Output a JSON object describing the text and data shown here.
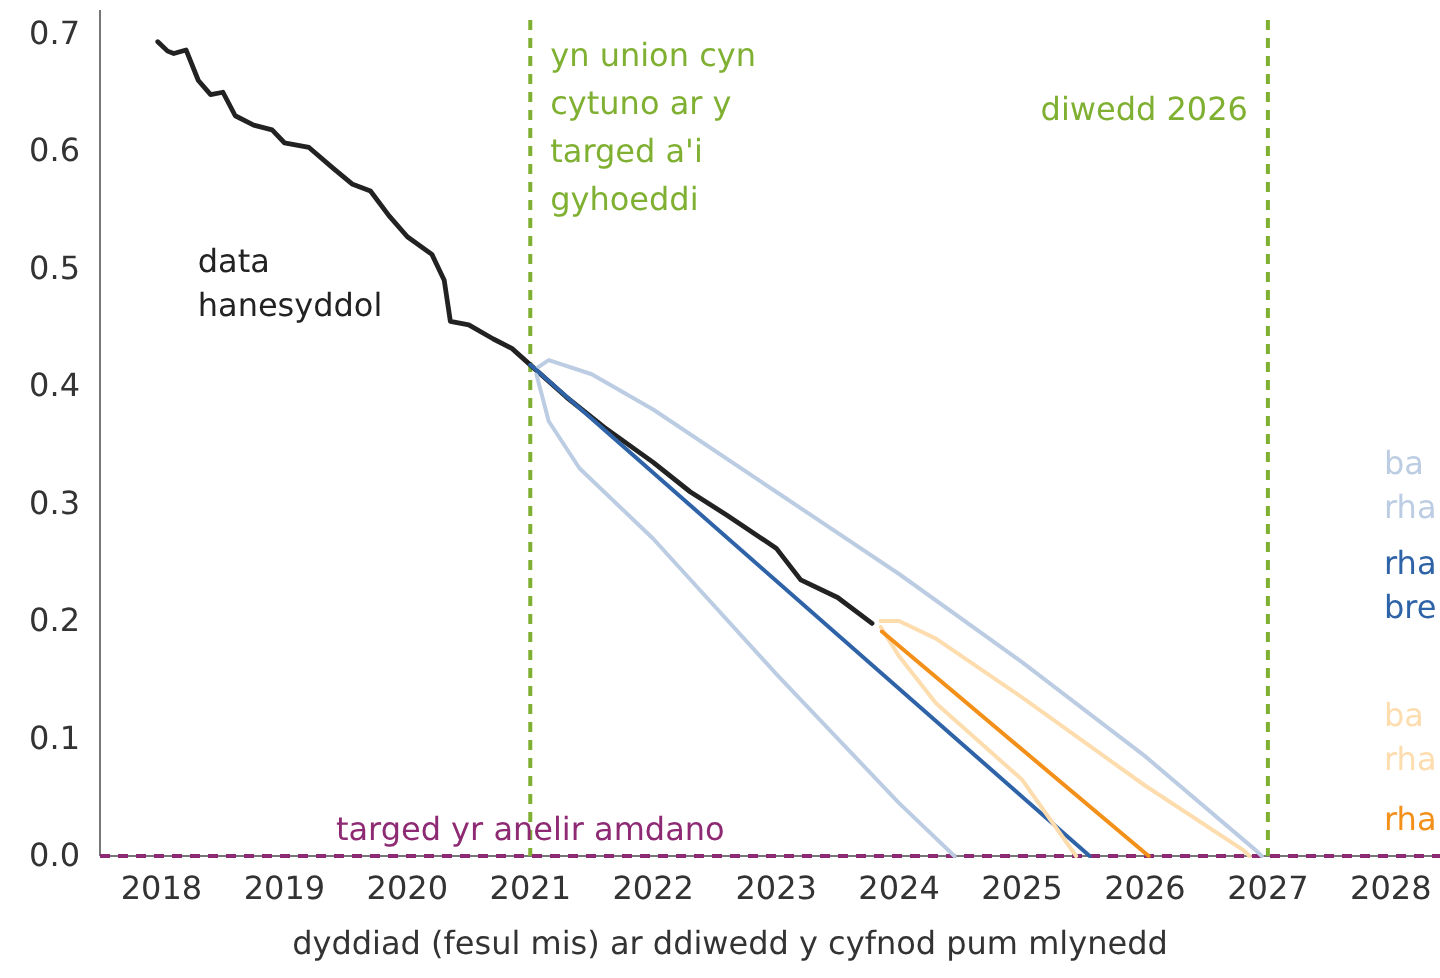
{
  "chart_data": {
    "type": "line",
    "xlabel": "dyddiad (fesul mis) ar ddiwedd y cyfnod pum mlynedd",
    "xlim": [
      2017.5,
      2028.4
    ],
    "xticks": [
      2018,
      2019,
      2020,
      2021,
      2022,
      2023,
      2024,
      2025,
      2026,
      2027,
      2028
    ],
    "ylim": [
      0,
      0.72
    ],
    "yticks": [
      {
        "value": 0,
        "label": "0.0"
      },
      {
        "value": 0.1,
        "label": "0.1"
      },
      {
        "value": 0.2,
        "label": "0.2"
      },
      {
        "value": 0.3,
        "label": "0.3"
      },
      {
        "value": 0.4,
        "label": "0.4"
      },
      {
        "value": 0.5,
        "label": "0.5"
      },
      {
        "value": 0.6,
        "label": "0.6"
      },
      {
        "value": 0.7,
        "label": "0.7"
      }
    ],
    "grid": false,
    "line_style": "solid",
    "marker": "none",
    "series": [
      {
        "name": "data hanesyddol",
        "color": "#222222",
        "x": [
          2017.97,
          2018.05,
          2018.1,
          2018.2,
          2018.3,
          2018.4,
          2018.5,
          2018.6,
          2018.75,
          2018.9,
          2019.0,
          2019.2,
          2019.4,
          2019.55,
          2019.7,
          2019.85,
          2020.0,
          2020.2,
          2020.3,
          2020.35,
          2020.5,
          2020.7,
          2020.85,
          2021.0,
          2021.3,
          2021.6,
          2022.0,
          2022.3,
          2022.6,
          2023.0,
          2023.2,
          2023.5,
          2023.78
        ],
        "values": [
          0.693,
          0.685,
          0.683,
          0.686,
          0.66,
          0.648,
          0.65,
          0.63,
          0.622,
          0.618,
          0.607,
          0.603,
          0.585,
          0.572,
          0.566,
          0.545,
          0.527,
          0.512,
          0.49,
          0.455,
          0.452,
          0.44,
          0.432,
          0.418,
          0.39,
          0.365,
          0.335,
          0.31,
          0.29,
          0.262,
          0.235,
          0.22,
          0.198
        ]
      },
      {
        "name": "ba rha",
        "color": "#bccde3",
        "x": [
          2021.05,
          2021.15,
          2021.5,
          2022,
          2023,
          2024,
          2025,
          2026,
          2026.9,
          2026.95
        ],
        "values": [
          0.415,
          0.422,
          0.41,
          0.38,
          0.31,
          0.24,
          0.165,
          0.085,
          0.005,
          0
        ]
      },
      {
        "color": "#bccde3",
        "x": [
          2021.05,
          2021.15,
          2021.4,
          2022,
          2023,
          2024,
          2024.45
        ],
        "values": [
          0.41,
          0.37,
          0.33,
          0.27,
          0.155,
          0.045,
          0
        ]
      },
      {
        "name": "rha bre",
        "color": "#2f63a8",
        "x": [
          2021,
          2025.55
        ],
        "values": [
          0.418,
          0
        ]
      },
      {
        "name": "ba rha",
        "color": "#fddcae",
        "x": [
          2023.85,
          2024.0,
          2024.3,
          2025,
          2026,
          2026.8,
          2026.85
        ],
        "values": [
          0.2,
          0.2,
          0.185,
          0.135,
          0.06,
          0.005,
          0
        ]
      },
      {
        "color": "#fddcae",
        "x": [
          2023.85,
          2024.0,
          2024.3,
          2025,
          2025.44
        ],
        "values": [
          0.195,
          0.17,
          0.13,
          0.065,
          0
        ]
      },
      {
        "name": "rha",
        "color": "#f39019",
        "x": [
          2023.86,
          2026.03
        ],
        "values": [
          0.191,
          0
        ]
      }
    ],
    "ref_lines": [
      {
        "axis": "x",
        "value": 2021,
        "label": "yn union cyn cytuno ar y targed a'i gyhoeddi",
        "color": "#7fb031",
        "line_style": "dashed"
      },
      {
        "axis": "x",
        "value": 2027,
        "label": "diwedd 2026",
        "color": "#7fb031",
        "line_style": "dashed"
      },
      {
        "axis": "y",
        "value": 0,
        "label": "targed yr anelir amdano",
        "color": "#8e2a73",
        "line_style": "dashed"
      }
    ]
  }
}
